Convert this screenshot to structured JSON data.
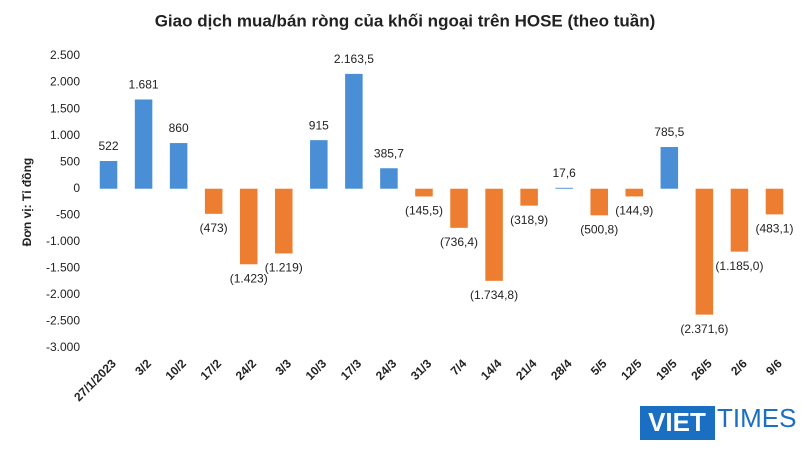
{
  "chart_data": {
    "type": "bar",
    "title": "Giao dịch mua/bán ròng của khối ngoại trên HOSE (theo tuần)",
    "y_label": "Đơn vị: Tỉ đồng",
    "categories": [
      "27/1/2023",
      "3/2",
      "10/2",
      "17/2",
      "24/2",
      "3/3",
      "10/3",
      "17/3",
      "24/3",
      "31/3",
      "7/4",
      "14/4",
      "21/4",
      "28/4",
      "5/5",
      "12/5",
      "19/5",
      "26/5",
      "2/6",
      "9/6"
    ],
    "values": [
      522,
      1681,
      860,
      -473,
      -1423,
      -1219,
      915,
      2163.5,
      385.7,
      -145.5,
      -736.4,
      -1734.8,
      -318.9,
      17.6,
      -500.8,
      -144.9,
      785.5,
      -2371.6,
      -1185.0,
      -483.1
    ],
    "value_labels": [
      "522",
      "1.681",
      "860",
      "(473)",
      "(1.423)",
      "(1.219)",
      "915",
      "2.163,5",
      "385,7",
      "(145,5)",
      "(736,4)",
      "(1.734,8)",
      "(318,9)",
      "17,6",
      "(500,8)",
      "(144,9)",
      "785,5",
      "(2.371,6)",
      "(1.185,0)",
      "(483,1)"
    ],
    "positive_color": "#4a8fd6",
    "negative_color": "#ed7d31",
    "ylim": [
      -3000,
      2500
    ],
    "yticks": [
      {
        "value": -3000,
        "label": "-3.000"
      },
      {
        "value": -2500,
        "label": "-2.500"
      },
      {
        "value": -2000,
        "label": "-2.000"
      },
      {
        "value": -1500,
        "label": "-1.500"
      },
      {
        "value": -1000,
        "label": "-1.000"
      },
      -500,
      0,
      500,
      {
        "value": 1000,
        "label": "1.000"
      },
      {
        "value": 1500,
        "label": "1.500"
      },
      {
        "value": 2000,
        "label": "2.000"
      },
      {
        "value": 2500,
        "label": "2.500"
      }
    ],
    "watermark": {
      "left": "VIET",
      "right": "TIMES"
    }
  }
}
